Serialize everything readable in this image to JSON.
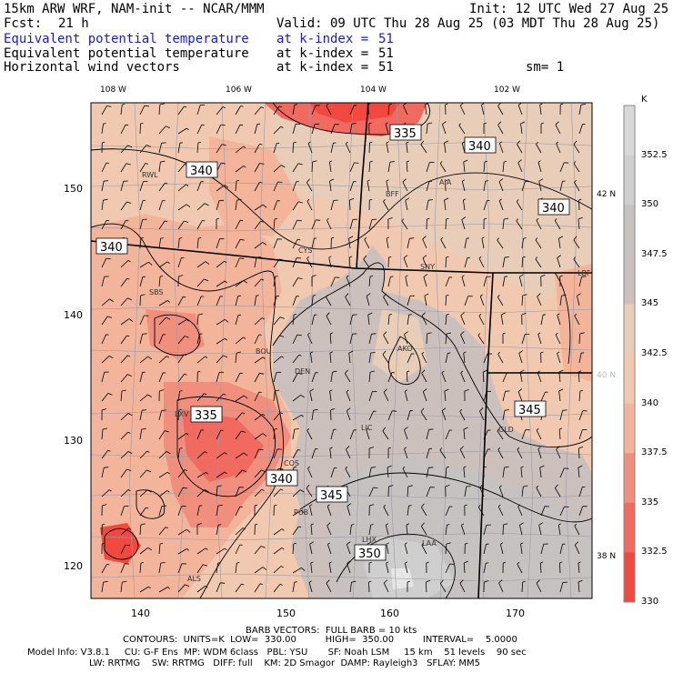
{
  "header": {
    "model": "15km ARW WRF, NAM-init -- NCAR/MMM",
    "init": "Init: 12 UTC Wed 27 Aug 25",
    "fcst_label": "Fcst:",
    "fcst_value": "21 h",
    "valid": "Valid: 09 UTC Thu 28 Aug 25 (03 MDT Thu 28 Aug 25)",
    "fields": [
      {
        "name": "Equivalent potential temperature",
        "level": "at k-index =",
        "k": "51",
        "color": "#1a1acc"
      },
      {
        "name": "Equivalent potential temperature",
        "level": "at k-index =",
        "k": "51",
        "color": "#000000"
      },
      {
        "name": "Horizontal wind vectors",
        "level": "at k-index =",
        "k": "51",
        "color": "#000000"
      }
    ],
    "sm": "sm= 1"
  },
  "top_lon_labels": [
    "108 W",
    "106 W",
    "104 W",
    "102 W"
  ],
  "left_y_labels": [
    "150",
    "140",
    "130",
    "120"
  ],
  "bottom_x_labels": [
    "140",
    "150",
    "160",
    "170"
  ],
  "right_lat_labels": [
    {
      "text": "42 N",
      "color": "#000000"
    },
    {
      "text": "40 N",
      "color": "#bbbbbb"
    },
    {
      "text": "38 N",
      "color": "#000000"
    }
  ],
  "stations": [
    "RWL",
    "BFF",
    "AIA",
    "CYS",
    "SNY",
    "LBF",
    "SBS",
    "BOU",
    "AKO",
    "DEN",
    "LXV",
    "LIC",
    "GLD",
    "COS",
    "PUB",
    "LHX",
    "LAA",
    "ALS"
  ],
  "contour_labels": [
    "335",
    "340",
    "340",
    "340",
    "340",
    "335",
    "340",
    "345",
    "345",
    "350"
  ],
  "colorbar": {
    "unit": "K",
    "labels": [
      "352.5",
      "350",
      "347.5",
      "345",
      "342.5",
      "340",
      "337.5",
      "335",
      "332.5",
      "330"
    ],
    "colors": [
      "#d8d8d8",
      "#cfcfcf",
      "#c6c2c2",
      "#ccc0bc",
      "#e8cdb8",
      "#f1c9b0",
      "#f2b49a",
      "#f08f7e",
      "#f06a60",
      "#f04a40"
    ]
  },
  "footer": {
    "line1": "BARB VECTORS:  FULL BARB = 10 kts",
    "line2": "CONTOURS:  UNITS=K  LOW=  330.00          HIGH=  350.00          INTERVAL=    5.0000",
    "line3": "Model Info: V3.8.1     CU: G-F Ens  MP: WDM 6class   PBL: YSU       SF: Noah LSM     15 km    51 levels    90 sec",
    "line4": "LW: RRTMG    SW: RRTMG   DIFF: full    KM: 2D Smagor  DAMP: Rayleigh3   SFLAY: MM5"
  }
}
